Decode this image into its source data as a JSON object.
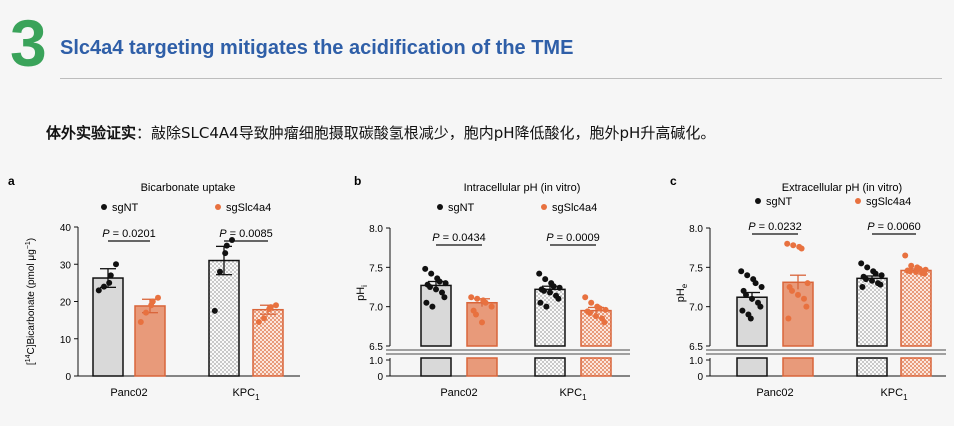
{
  "header": {
    "number": "3",
    "title": "Slc4a4 targeting mitigates the acidification of the TME"
  },
  "summary": {
    "bold": "体外实验证实",
    "text": "：敲除SLC4A4导致肿瘤细胞摄取碳酸氢根减少，胞内pH降低酸化，胞外pH升高碱化。"
  },
  "legend": {
    "control": "sgNT",
    "knockout": "sgSlc4a4"
  },
  "colors": {
    "control_fill": "#d9d9d9",
    "knockout_fill": "#e89a7a",
    "knockout_point": "#e8713f",
    "control_point": "#111111"
  },
  "chart_data": [
    {
      "type": "bar",
      "panel": "a",
      "title": "Bicarbonate uptake",
      "ylabel_parts": [
        "[",
        "14",
        "C]Bicarbonate (pmol μg",
        "−1",
        ")"
      ],
      "categories": [
        "Panc02",
        "KPC1"
      ],
      "category_labels": [
        {
          "main": "Panc02",
          "sub": ""
        },
        {
          "main": "KPC",
          "sub": "1"
        }
      ],
      "yticks": [
        0,
        10,
        20,
        30,
        40
      ],
      "ylim": [
        0,
        40
      ],
      "series": [
        {
          "name": "sgNT",
          "values": [
            26.3,
            31.0
          ],
          "errors": [
            2.5,
            3.8
          ],
          "points": [
            [
              23,
              24,
              25,
              27,
              30
            ],
            [
              17.5,
              28,
              33,
              35,
              36.5
            ]
          ]
        },
        {
          "name": "sgSlc4a4",
          "values": [
            18.8,
            17.8
          ],
          "errors": [
            1.8,
            1.2
          ],
          "points": [
            [
              14.5,
              17,
              19,
              20,
              21
            ],
            [
              14.5,
              15.5,
              18,
              18.5,
              19
            ]
          ]
        }
      ],
      "pvalues": [
        "P = 0.0201",
        "P = 0.0085"
      ]
    },
    {
      "type": "bar",
      "panel": "b",
      "title": "Intracellular pH (in vitro)",
      "ylabel": "pH",
      "ylabel_sub": "i",
      "categories": [
        "Panc02",
        "KPC1"
      ],
      "category_labels": [
        {
          "main": "Panc02",
          "sub": ""
        },
        {
          "main": "KPC",
          "sub": "1"
        }
      ],
      "yticks_top": [
        6.5,
        7.0,
        7.5,
        8.0
      ],
      "yticks_bottom": [
        0,
        1.0
      ],
      "ylim": [
        6.5,
        8.0
      ],
      "series": [
        {
          "name": "sgNT",
          "values": [
            7.27,
            7.22
          ],
          "errors": [
            0.05,
            0.04
          ],
          "points": [
            [
              7.48,
              7.42,
              7.36,
              7.32,
              7.3,
              7.28,
              7.25,
              7.22,
              7.18,
              7.12,
              7.05,
              7.0
            ],
            [
              7.42,
              7.35,
              7.3,
              7.26,
              7.24,
              7.22,
              7.2,
              7.18,
              7.14,
              7.1,
              7.05,
              7.0
            ]
          ]
        },
        {
          "name": "sgSlc4a4",
          "values": [
            7.05,
            6.95
          ],
          "errors": [
            0.05,
            0.04
          ],
          "points": [
            [
              7.12,
              7.1,
              7.08,
              7.05,
              7.0,
              6.95,
              6.9,
              6.8
            ],
            [
              7.12,
              7.05,
              7.0,
              6.98,
              6.96,
              6.94,
              6.92,
              6.88,
              6.85,
              6.8
            ]
          ]
        }
      ],
      "pvalues": [
        "P = 0.0434",
        "P = 0.0009"
      ]
    },
    {
      "type": "bar",
      "panel": "c",
      "title": "Extracellular pH (in vitro)",
      "ylabel": "pH",
      "ylabel_sub": "e",
      "categories": [
        "Panc02",
        "KPC1"
      ],
      "category_labels": [
        {
          "main": "Panc02",
          "sub": ""
        },
        {
          "main": "KPC",
          "sub": "1"
        }
      ],
      "yticks_top": [
        6.5,
        7.0,
        7.5,
        8.0
      ],
      "yticks_bottom": [
        0,
        1.0
      ],
      "ylim": [
        6.5,
        8.0
      ],
      "series": [
        {
          "name": "sgNT",
          "values": [
            7.12,
            7.36
          ],
          "errors": [
            0.06,
            0.03
          ],
          "points": [
            [
              7.45,
              7.4,
              7.35,
              7.3,
              7.25,
              7.2,
              7.15,
              7.1,
              7.05,
              7.0,
              6.95,
              6.9,
              6.85
            ],
            [
              7.55,
              7.5,
              7.45,
              7.42,
              7.4,
              7.38,
              7.35,
              7.33,
              7.3,
              7.28,
              7.25
            ]
          ]
        },
        {
          "name": "sgSlc4a4",
          "values": [
            7.31,
            7.46
          ],
          "errors": [
            0.09,
            0.02
          ],
          "points": [
            [
              7.8,
              7.78,
              7.76,
              7.74,
              7.3,
              7.25,
              7.2,
              7.15,
              7.1,
              7.0,
              6.85
            ],
            [
              7.65,
              7.52,
              7.5,
              7.48,
              7.47,
              7.46,
              7.45,
              7.44,
              7.43,
              7.42
            ]
          ]
        }
      ],
      "pvalues": [
        "P = 0.0232",
        "P = 0.0060"
      ]
    }
  ]
}
